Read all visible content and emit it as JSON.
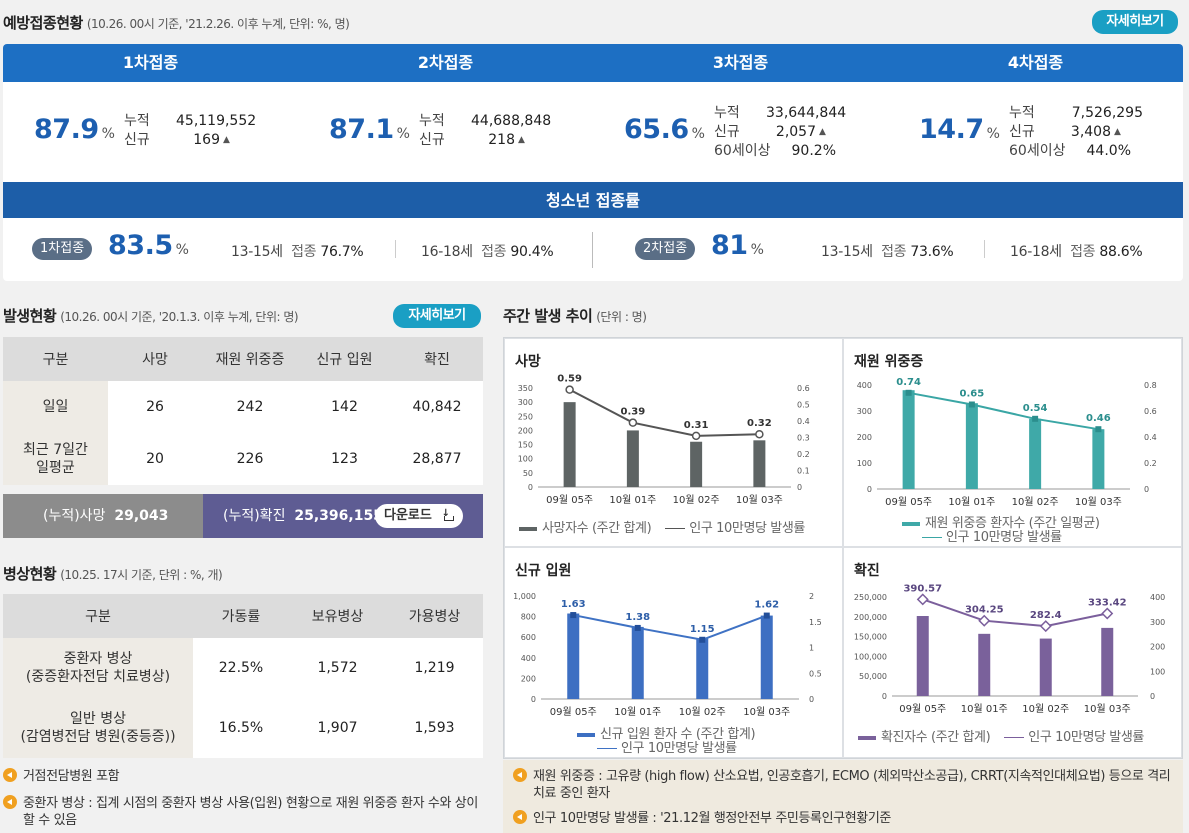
{
  "vaccination": {
    "title": "예방접종현황",
    "subtitle": "(10.26. 00시 기준, '21.2.26. 이후 누계, 단위: %, 명)",
    "detail_button": "자세히보기",
    "doses": [
      {
        "label": "1차접종",
        "rate": "87.9",
        "unit": "%",
        "rows": [
          {
            "k": "누적",
            "v": "45,119,552",
            "tri": ""
          },
          {
            "k": "신규",
            "v": "169",
            "tri": "▲"
          }
        ]
      },
      {
        "label": "2차접종",
        "rate": "87.1",
        "unit": "%",
        "rows": [
          {
            "k": "누적",
            "v": "44,688,848",
            "tri": ""
          },
          {
            "k": "신규",
            "v": "218",
            "tri": "▲"
          }
        ]
      },
      {
        "label": "3차접종",
        "rate": "65.6",
        "unit": "%",
        "rows": [
          {
            "k": "누적",
            "v": "33,644,844",
            "tri": ""
          },
          {
            "k": "신규",
            "v": "2,057",
            "tri": "▲"
          },
          {
            "k": "60세이상",
            "v": "90.2%",
            "tri": ""
          }
        ]
      },
      {
        "label": "4차접종",
        "rate": "14.7",
        "unit": "%",
        "rows": [
          {
            "k": "누적",
            "v": "7,526,295",
            "tri": ""
          },
          {
            "k": "신규",
            "v": "3,408",
            "tri": "▲"
          },
          {
            "k": "60세이상",
            "v": "44.0%",
            "tri": ""
          }
        ]
      }
    ],
    "youth": {
      "title": "청소년 접종률",
      "first": {
        "pill": "1차접종",
        "rate": "83.5",
        "unit": "%",
        "a_label": "13-15세",
        "a_k": "접종",
        "a_v": "76.7%",
        "b_label": "16-18세",
        "b_k": "접종",
        "b_v": "90.4%"
      },
      "second": {
        "pill": "2차접종",
        "rate": "81",
        "unit": "%",
        "a_label": "13-15세",
        "a_k": "접종",
        "a_v": "73.6%",
        "b_label": "16-18세",
        "b_k": "접종",
        "b_v": "88.6%"
      }
    }
  },
  "occurrence": {
    "title": "발생현황",
    "subtitle": "(10.26. 00시 기준, '20.1.3. 이후 누계, 단위: 명)",
    "detail_button": "자세히보기",
    "headers": [
      "구분",
      "사망",
      "재원 위중증",
      "신규 입원",
      "확진"
    ],
    "rows": [
      {
        "label": "일일",
        "values": [
          "26",
          "242",
          "142",
          "40,842"
        ]
      },
      {
        "label": "최근 7일간 일평균",
        "values": [
          "20",
          "226",
          "123",
          "28,877"
        ]
      }
    ],
    "cum_death_label": "(누적)사망",
    "cum_death_value": "29,043",
    "cum_confirmed_label": "(누적)확진",
    "cum_confirmed_value": "25,396,155",
    "download_label": "다운로드"
  },
  "beds": {
    "title": "병상현황",
    "subtitle": "(10.25. 17시 기준, 단위 : %, 개)",
    "headers": [
      "구분",
      "가동률",
      "보유병상",
      "가용병상"
    ],
    "rows": [
      {
        "label1": "중환자 병상",
        "label2": "(중증환자전담 치료병상)",
        "values": [
          "22.5%",
          "1,572",
          "1,219"
        ]
      },
      {
        "label1": "일반 병상",
        "label2": "(감염병전담 병원(중등증))",
        "values": [
          "16.5%",
          "1,907",
          "1,593"
        ]
      }
    ],
    "notes": [
      "거점전담병원 포함",
      "중환자 병상 : 집계 시점의 중환자 병상 사용(입원) 현황으로 재원 위중증 환자 수와 상이할 수 있음"
    ]
  },
  "weekly": {
    "title": "주간 발생 추이",
    "subtitle": "(단위 : 명)",
    "notes": [
      "재원 위중증 : 고유량 (high flow) 산소요법, 인공호흡기, ECMO (체외막산소공급), CRRT(지속적인대체요법) 등으로 격리 치료 중인 환자",
      "인구 10만명당 발생률 : '21.12월 행정안전부 주민등록인구현황기준"
    ]
  },
  "chart_data": [
    {
      "type": "bar",
      "title": "사망",
      "color": "#5e6464",
      "categories": [
        "09월 05주",
        "10월 01주",
        "10월 02주",
        "10월 03주"
      ],
      "series": [
        {
          "name": "사망자수 (주간 합계)",
          "values": [
            300,
            200,
            160,
            165
          ]
        },
        {
          "name": "인구 10만명당 발생률",
          "values": [
            0.59,
            0.39,
            0.31,
            0.32
          ]
        }
      ],
      "ylim": [
        0,
        350
      ],
      "yticks": [
        "0",
        "50",
        "100",
        "150",
        "200",
        "250",
        "300",
        "350"
      ],
      "y2lim": [
        0,
        0.6
      ],
      "y2ticks": [
        "0",
        "0.1",
        "0.2",
        "0.3",
        "0.4",
        "0.5",
        "0.6"
      ]
    },
    {
      "type": "bar",
      "title": "재원 위중증",
      "color": "#3fa9a8",
      "categories": [
        "09월 05주",
        "10월 01주",
        "10월 02주",
        "10월 03주"
      ],
      "series": [
        {
          "name": "재원 위중증 환자수 (주간 일평균)",
          "values": [
            380,
            330,
            270,
            230
          ]
        },
        {
          "name": "인구 10만명당 발생률",
          "values": [
            0.74,
            0.65,
            0.54,
            0.46
          ]
        }
      ],
      "ylim": [
        0,
        400
      ],
      "yticks": [
        "0",
        "100",
        "200",
        "300",
        "400"
      ],
      "y2lim": [
        0,
        0.8
      ],
      "y2ticks": [
        "0",
        "0.2",
        "0.4",
        "0.6",
        "0.8"
      ]
    },
    {
      "type": "bar",
      "title": "신규 입원",
      "color": "#3d6fc2",
      "categories": [
        "09월 05주",
        "10월 01주",
        "10월 02주",
        "10월 03주"
      ],
      "series": [
        {
          "name": "신규 입원 환자 수 (주간 합계)",
          "values": [
            830,
            700,
            590,
            810
          ]
        },
        {
          "name": "인구 10만명당 발생률",
          "values": [
            1.63,
            1.38,
            1.15,
            1.62
          ]
        }
      ],
      "ylim": [
        0,
        1000
      ],
      "yticks": [
        "0",
        "200",
        "400",
        "600",
        "800",
        "1,000"
      ],
      "y2lim": [
        0,
        2
      ],
      "y2ticks": [
        "0",
        "0.5",
        "1",
        "1.5",
        "2"
      ]
    },
    {
      "type": "bar",
      "title": "확진",
      "color": "#7a619b",
      "categories": [
        "09월 05주",
        "10월 01주",
        "10월 02주",
        "10월 03주"
      ],
      "series": [
        {
          "name": "확진자수 (주간 합계)",
          "values": [
            202000,
            157000,
            145000,
            172000
          ]
        },
        {
          "name": "인구 10만명당 발생률",
          "values": [
            390.57,
            304.25,
            282.4,
            333.42
          ]
        }
      ],
      "ylim": [
        0,
        250000
      ],
      "yticks": [
        "0",
        "50,000",
        "100,000",
        "150,000",
        "200,000",
        "250,000"
      ],
      "y2lim": [
        0,
        400
      ],
      "y2ticks": [
        "0",
        "100",
        "200",
        "300",
        "400"
      ]
    }
  ]
}
